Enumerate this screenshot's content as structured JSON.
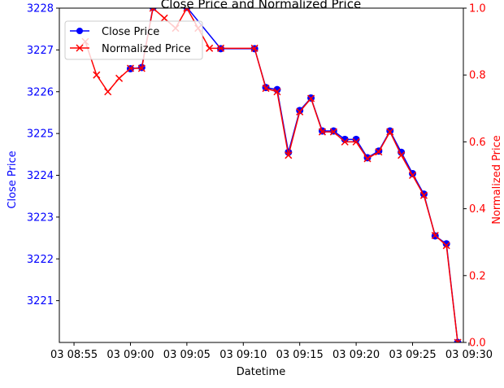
{
  "chart_data": {
    "type": "line",
    "title": "Close Price and Normalized Price",
    "xlabel": "Datetime",
    "ylabel_left": "Close Price",
    "ylabel_right": "Normalized Price",
    "legend_position": "top-left",
    "grid": false,
    "x_ticks": [
      "03 08:55",
      "03 09:00",
      "03 09:05",
      "03 09:10",
      "03 09:15",
      "03 09:20",
      "03 09:25",
      "03 09:30"
    ],
    "x_range_minutes": [
      -1.3,
      34.5
    ],
    "y_left_range": [
      3220.0,
      3228.0
    ],
    "y_left_ticks": [
      "3221",
      "3222",
      "3223",
      "3224",
      "3225",
      "3226",
      "3227",
      "3228"
    ],
    "y_right_range": [
      0.0,
      1.0
    ],
    "y_right_ticks": [
      "0.0",
      "0.2",
      "0.4",
      "0.6",
      "0.8",
      "1.0"
    ],
    "colors": {
      "left_axis": "#0000ff",
      "right_axis": "#ff0000",
      "close_series": "#0000ff",
      "normalized_series": "#ff0000"
    },
    "series": [
      {
        "name": "Close Price",
        "axis": "left",
        "marker": "circle",
        "points": [
          [
            "09:00",
            3226.55
          ],
          [
            "09:01",
            3226.58
          ],
          [
            "09:02",
            3228.02
          ],
          [
            "09:05",
            3228.02
          ],
          [
            "09:08",
            3227.03
          ],
          [
            "09:11",
            3227.03
          ],
          [
            "09:12",
            3226.1
          ],
          [
            "09:13",
            3226.05
          ],
          [
            "09:14",
            3224.55
          ],
          [
            "09:15",
            3225.55
          ],
          [
            "09:16",
            3225.85
          ],
          [
            "09:17",
            3225.06
          ],
          [
            "09:18",
            3225.06
          ],
          [
            "09:19",
            3224.86
          ],
          [
            "09:20",
            3224.86
          ],
          [
            "09:21",
            3224.42
          ],
          [
            "09:22",
            3224.58
          ],
          [
            "09:23",
            3225.06
          ],
          [
            "09:24",
            3224.55
          ],
          [
            "09:25",
            3224.04
          ],
          [
            "09:26",
            3223.55
          ],
          [
            "09:27",
            3222.55
          ],
          [
            "09:28",
            3222.36
          ],
          [
            "09:29",
            3220.0
          ]
        ]
      },
      {
        "name": "Normalized Price",
        "axis": "right",
        "marker": "x",
        "points": [
          [
            "08:56",
            0.9
          ],
          [
            "08:57",
            0.8
          ],
          [
            "08:58",
            0.75
          ],
          [
            "08:59",
            0.79
          ],
          [
            "09:00",
            0.82
          ],
          [
            "09:01",
            0.82
          ],
          [
            "09:02",
            1.0
          ],
          [
            "09:03",
            0.97
          ],
          [
            "09:04",
            0.94
          ],
          [
            "09:05",
            1.0
          ],
          [
            "09:06",
            0.94
          ],
          [
            "09:07",
            0.88
          ],
          [
            "09:08",
            0.88
          ],
          [
            "09:11",
            0.88
          ],
          [
            "09:12",
            0.76
          ],
          [
            "09:13",
            0.75
          ],
          [
            "09:14",
            0.56
          ],
          [
            "09:15",
            0.69
          ],
          [
            "09:16",
            0.73
          ],
          [
            "09:17",
            0.63
          ],
          [
            "09:18",
            0.63
          ],
          [
            "09:19",
            0.6
          ],
          [
            "09:20",
            0.6
          ],
          [
            "09:21",
            0.55
          ],
          [
            "09:22",
            0.57
          ],
          [
            "09:23",
            0.63
          ],
          [
            "09:24",
            0.56
          ],
          [
            "09:25",
            0.5
          ],
          [
            "09:26",
            0.44
          ],
          [
            "09:27",
            0.32
          ],
          [
            "09:28",
            0.29
          ],
          [
            "09:29",
            0.0
          ]
        ]
      }
    ]
  }
}
